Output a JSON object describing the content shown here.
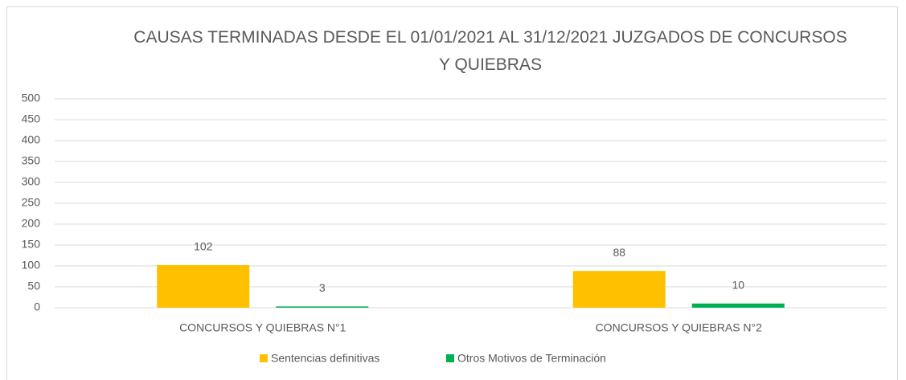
{
  "chart_data": {
    "type": "bar",
    "title": "CAUSAS TERMINADAS DESDE EL 01/01/2021 AL 31/12/2021 JUZGADOS DE CONCURSOS Y QUIEBRAS",
    "categories": [
      "CONCURSOS Y QUIEBRAS N°1",
      "CONCURSOS Y QUIEBRAS N°2"
    ],
    "series": [
      {
        "name": "Sentencias definitivas",
        "color": "#ffc000",
        "values": [
          102,
          88
        ]
      },
      {
        "name": "Otros Motivos de Terminación",
        "color": "#00b050",
        "values": [
          3,
          10
        ]
      }
    ],
    "ylim": [
      0,
      500
    ],
    "yticks": [
      0,
      50,
      100,
      150,
      200,
      250,
      300,
      350,
      400,
      450,
      500
    ],
    "grid": true,
    "legend": "bottom"
  }
}
